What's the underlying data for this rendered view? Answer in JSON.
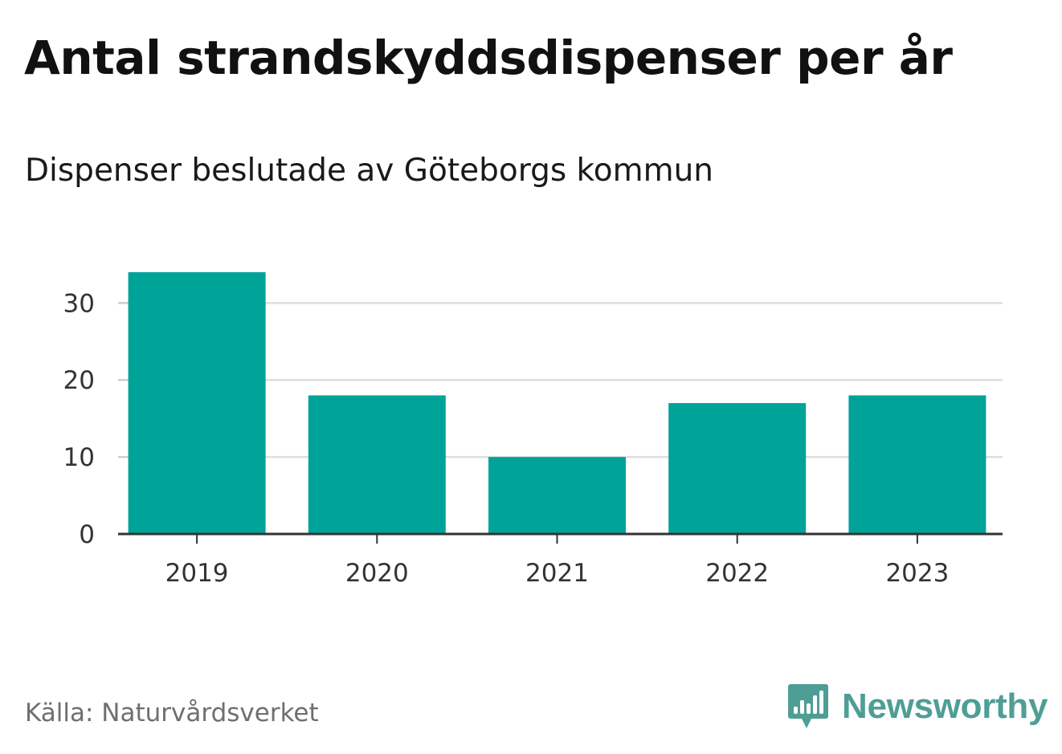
{
  "header": {
    "title": "Antal strandskyddsdispenser per år",
    "subtitle": "Dispenser beslutade av Göteborgs kommun"
  },
  "chart_data": {
    "type": "bar",
    "title": "Antal strandskyddsdispenser per år",
    "subtitle": "Dispenser beslutade av Göteborgs kommun",
    "categories": [
      "2019",
      "2020",
      "2021",
      "2022",
      "2023"
    ],
    "values": [
      34,
      18,
      10,
      17,
      18
    ],
    "xlabel": "",
    "ylabel": "",
    "ylim": [
      0,
      34
    ],
    "yticks": [
      0,
      10,
      20,
      30
    ],
    "grid": true,
    "bar_color": "#00a398"
  },
  "footer": {
    "source": "Källa: Naturvårdsverket",
    "brand": "Newsworthy",
    "brand_icon": "bar-chart-speech-bubble-icon",
    "brand_color": "#4f9e95"
  }
}
